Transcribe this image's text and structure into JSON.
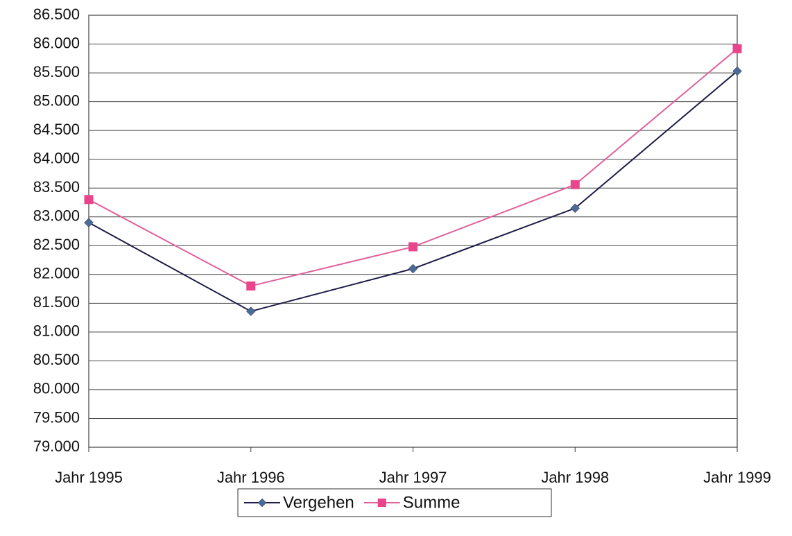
{
  "chart_data": {
    "type": "line",
    "categories": [
      "Jahr 1995",
      "Jahr 1996",
      "Jahr 1997",
      "Jahr 1998",
      "Jahr 1999"
    ],
    "series": [
      {
        "name": "Vergehen",
        "color": "#1c1c48",
        "marker_color": "#4a6a9a",
        "marker": "diamond",
        "values": [
          82900,
          81360,
          82100,
          83150,
          85530
        ]
      },
      {
        "name": "Summe",
        "color": "#e0609a",
        "marker_color": "#e8458a",
        "marker": "square",
        "values": [
          83300,
          81800,
          82480,
          83560,
          85920
        ]
      }
    ],
    "ylim": [
      79000,
      86500
    ],
    "yticks": [
      {
        "value": 79000,
        "label": "79.000"
      },
      {
        "value": 79500,
        "label": "79.500"
      },
      {
        "value": 80000,
        "label": "80.000"
      },
      {
        "value": 80500,
        "label": "80.500"
      },
      {
        "value": 81000,
        "label": "81.000"
      },
      {
        "value": 81500,
        "label": "81.500"
      },
      {
        "value": 82000,
        "label": "82.000"
      },
      {
        "value": 82500,
        "label": "82.500"
      },
      {
        "value": 83000,
        "label": "83.000"
      },
      {
        "value": 83500,
        "label": "83.500"
      },
      {
        "value": 84000,
        "label": "84.000"
      },
      {
        "value": 84500,
        "label": "84.500"
      },
      {
        "value": 85000,
        "label": "85.000"
      },
      {
        "value": 85500,
        "label": "85.500"
      },
      {
        "value": 86000,
        "label": "86.000"
      },
      {
        "value": 86500,
        "label": "86.500"
      }
    ],
    "grid": true,
    "legend": "bottom"
  }
}
